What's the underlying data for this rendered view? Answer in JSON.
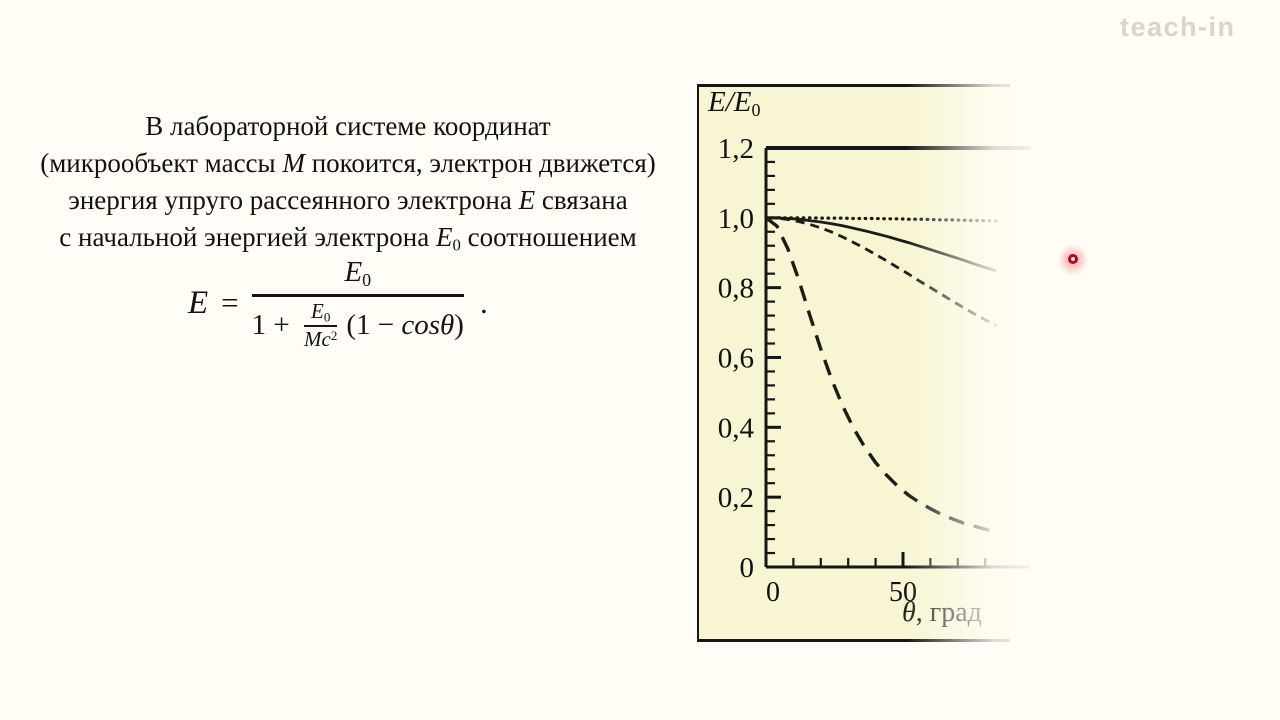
{
  "page": {
    "background": "#fffdf5",
    "panel_background": "#f7f5d3",
    "watermark": "teach-in",
    "laser_pointer_color": "#c00020"
  },
  "paragraph": {
    "lines": [
      {
        "segs": [
          {
            "t": "В лабораторной системе координат"
          }
        ]
      },
      {
        "segs": [
          {
            "t": "(микрообъект массы "
          },
          {
            "t": "M",
            "i": 1
          },
          {
            "t": " покоится, электрон движется)"
          }
        ]
      },
      {
        "segs": [
          {
            "t": "энергия упруго рассеянного электрона "
          },
          {
            "t": "E",
            "i": 1
          },
          {
            "t": " связана"
          }
        ]
      },
      {
        "segs": [
          {
            "t": "с начальной энергией электрона "
          },
          {
            "t": "E",
            "i": 1
          },
          {
            "t": "0",
            "sub": 1
          },
          {
            "t": " соотношением"
          }
        ]
      }
    ]
  },
  "formula": {
    "lhs": "E",
    "eq": "=",
    "num_base": "E",
    "num_sub": "0",
    "den_prefix": "1 + ",
    "nfrac_num_base": "E",
    "nfrac_num_sub": "0",
    "nfrac_den_base": "Mc",
    "nfrac_den_sup": "2",
    "den_open": "(1 − ",
    "den_cos": "cosθ",
    "den_close": ")",
    "period": "."
  },
  "chart_data": {
    "type": "line",
    "title": "",
    "ylabel": {
      "base": "E/E",
      "sub": "0"
    },
    "xlabel": {
      "sym": "θ",
      "rest": ", град"
    },
    "xlim": [
      0,
      84
    ],
    "ylim": [
      0,
      1.2
    ],
    "grid": false,
    "legend": "none",
    "y_ticks": [
      {
        "v": 1.2,
        "label": "1,2"
      },
      {
        "v": 1.0,
        "label": "1,0"
      },
      {
        "v": 0.8,
        "label": "0,8"
      },
      {
        "v": 0.6,
        "label": "0,6"
      },
      {
        "v": 0.4,
        "label": "0,4"
      },
      {
        "v": 0.2,
        "label": "0,2"
      },
      {
        "v": 0.0,
        "label": "0"
      }
    ],
    "x_ticks": [
      {
        "v": 0,
        "label": "0"
      },
      {
        "v": 50,
        "label": "50"
      }
    ],
    "y_minor_step": 0.04,
    "x_minor_step": 10,
    "x": [
      0,
      4,
      8,
      12,
      16,
      20,
      24,
      28,
      32,
      36,
      40,
      44,
      48,
      52,
      56,
      60,
      64,
      68,
      72,
      76,
      80,
      84
    ],
    "series": [
      {
        "name": "dotted",
        "style": "dotted",
        "values": [
          1.0,
          1.0,
          1.0,
          1.0,
          1.0,
          0.999,
          0.999,
          0.999,
          0.998,
          0.998,
          0.998,
          0.997,
          0.997,
          0.996,
          0.996,
          0.995,
          0.994,
          0.994,
          0.993,
          0.992,
          0.992,
          0.991
        ]
      },
      {
        "name": "solid",
        "style": "solid",
        "values": [
          1.0,
          0.9995,
          0.998,
          0.996,
          0.992,
          0.988,
          0.983,
          0.977,
          0.97,
          0.963,
          0.955,
          0.947,
          0.938,
          0.929,
          0.919,
          0.909,
          0.899,
          0.889,
          0.879,
          0.868,
          0.858,
          0.848
        ]
      },
      {
        "name": "short-dash",
        "style": "short-dash",
        "values": [
          1.0,
          0.999,
          0.995,
          0.989,
          0.981,
          0.971,
          0.959,
          0.945,
          0.929,
          0.913,
          0.895,
          0.877,
          0.858,
          0.839,
          0.819,
          0.8,
          0.781,
          0.762,
          0.743,
          0.725,
          0.708,
          0.691
        ]
      },
      {
        "name": "long-dash",
        "style": "long-dash",
        "values": [
          1.0,
          0.976,
          0.911,
          0.821,
          0.721,
          0.624,
          0.536,
          0.461,
          0.397,
          0.344,
          0.299,
          0.263,
          0.232,
          0.206,
          0.185,
          0.167,
          0.151,
          0.138,
          0.126,
          0.117,
          0.108,
          0.1
        ]
      }
    ]
  }
}
